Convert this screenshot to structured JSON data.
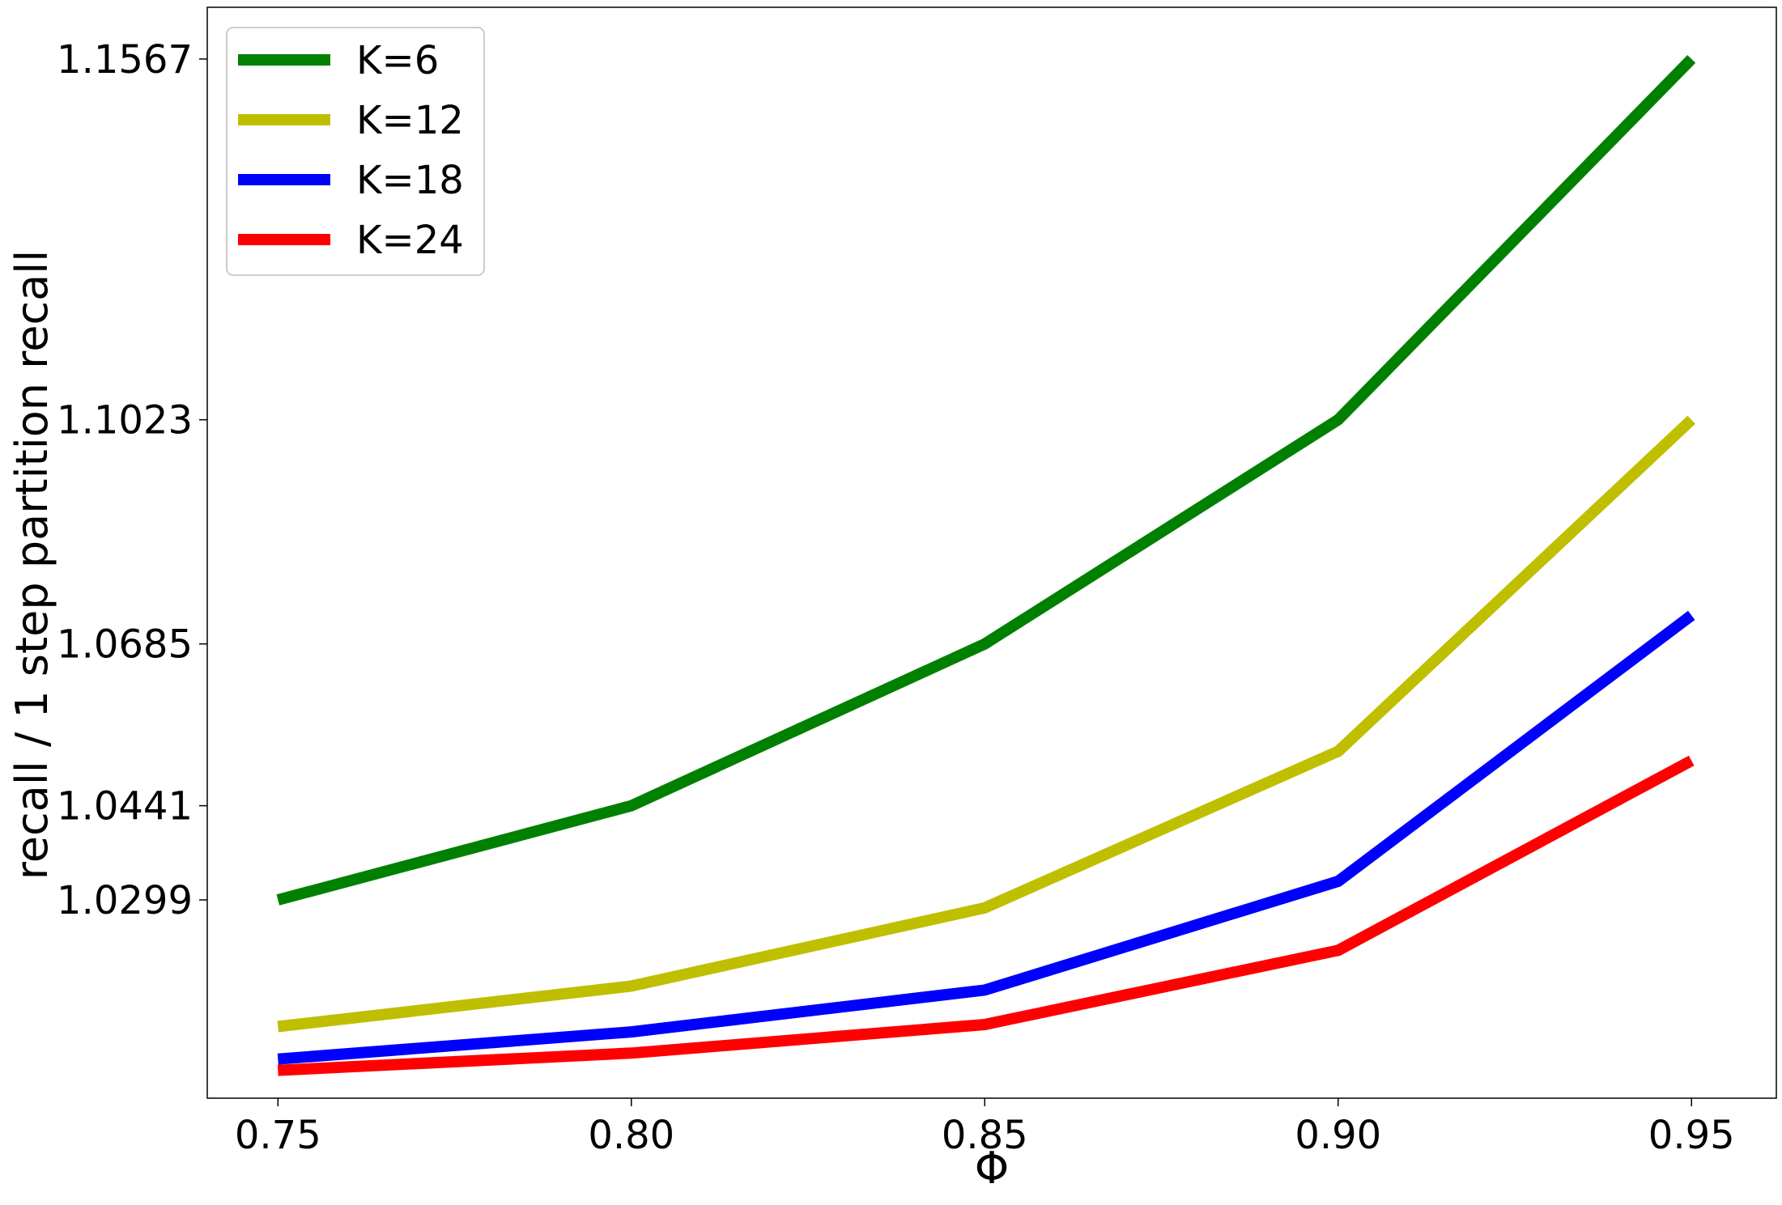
{
  "chart_data": {
    "type": "line",
    "title": "",
    "xlabel": "Φ",
    "ylabel": "recall / 1 step partition recall",
    "x": [
      0.75,
      0.8,
      0.85,
      0.9,
      0.95
    ],
    "x_tick_labels": [
      "0.75",
      "0.80",
      "0.85",
      "0.90",
      "0.95"
    ],
    "xlim": [
      0.74,
      0.962
    ],
    "y_ticks": [
      1.0299,
      1.0441,
      1.0685,
      1.1023,
      1.1567
    ],
    "y_tick_labels": [
      "1.0299",
      "1.0441",
      "1.0685",
      "1.1023",
      "1.1567"
    ],
    "ylim": [
      1.0,
      1.1645
    ],
    "grid": false,
    "legend_position": "top-left",
    "series": [
      {
        "name": "K=6",
        "color": "#008000",
        "values": [
          1.0299,
          1.0441,
          1.0685,
          1.1023,
          1.1567
        ]
      },
      {
        "name": "K=12",
        "color": "#bfbf00",
        "values": [
          1.0108,
          1.0169,
          1.0287,
          1.0523,
          1.1023
        ]
      },
      {
        "name": "K=18",
        "color": "#0000ff",
        "values": [
          1.0059,
          1.01,
          1.0163,
          1.0327,
          1.0728
        ]
      },
      {
        "name": "K=24",
        "color": "#ff0000",
        "values": [
          1.0042,
          1.0068,
          1.0111,
          1.0223,
          1.0509
        ]
      }
    ]
  }
}
